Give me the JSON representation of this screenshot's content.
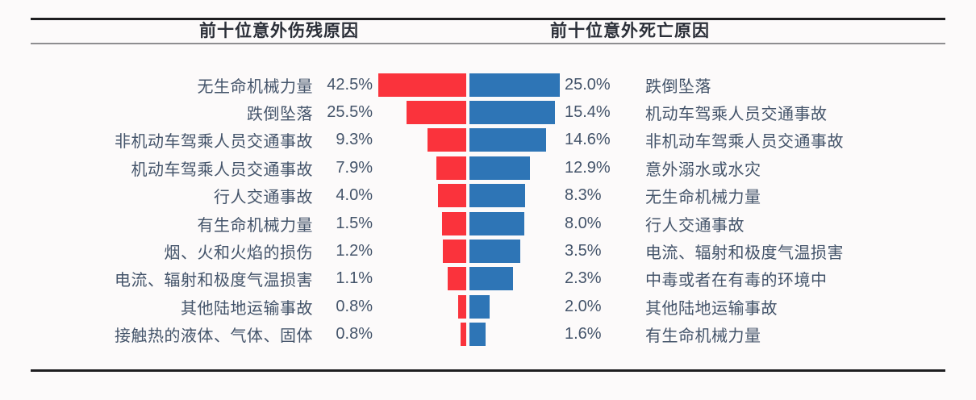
{
  "header": {
    "left_title": "前十位意外伤残原因",
    "right_title": "前十位意外死亡原因"
  },
  "colors": {
    "disability_bar": "#fa333c",
    "death_bar": "#2e75b6",
    "body_text": "#44546a",
    "title_text": "#2b2f38",
    "rule_dark": "#1e1e20",
    "rule_light": "#8e8e90",
    "background": "#fcfafa"
  },
  "chart_data": {
    "type": "bar",
    "variant": "tornado-bidirectional",
    "unit": "percent",
    "grid": false,
    "legend": "none",
    "left_series": {
      "name": "前十位意外伤残原因",
      "direction": "right-to-left",
      "color": "#fa333c",
      "items": [
        {
          "label": "无生命机械力量",
          "value": 42.5,
          "display": "42.5%",
          "bar_pct": 94
        },
        {
          "label": "跌倒坠落",
          "value": 25.5,
          "display": "25.5%",
          "bar_pct": 64
        },
        {
          "label": "非机动车驾乘人员交通事故",
          "value": 9.3,
          "display": "9.3%",
          "bar_pct": 41
        },
        {
          "label": "机动车驾乘人员交通事故",
          "value": 7.9,
          "display": "7.9%",
          "bar_pct": 32
        },
        {
          "label": "行人交通事故",
          "value": 4.0,
          "display": "4.0%",
          "bar_pct": 30
        },
        {
          "label": "有生命机械力量",
          "value": 1.5,
          "display": "1.5%",
          "bar_pct": 26
        },
        {
          "label": "烟、火和火焰的损伤",
          "value": 1.2,
          "display": "1.2%",
          "bar_pct": 25
        },
        {
          "label": "电流、辐射和极度气温损害",
          "value": 1.1,
          "display": "1.1%",
          "bar_pct": 20
        },
        {
          "label": "其他陆地运输事故",
          "value": 0.8,
          "display": "0.8%",
          "bar_pct": 9
        },
        {
          "label": "接触热的液体、气体、固体",
          "value": 0.8,
          "display": "0.8%",
          "bar_pct": 6
        }
      ]
    },
    "right_series": {
      "name": "前十位意外死亡原因",
      "direction": "left-to-right",
      "color": "#2e75b6",
      "items": [
        {
          "label": "跌倒坠落",
          "value": 25.0,
          "display": "25.0%",
          "bar_pct": 100
        },
        {
          "label": "机动车驾乘人员交通事故",
          "value": 15.4,
          "display": "15.4%",
          "bar_pct": 95
        },
        {
          "label": "非机动车驾乘人员交通事故",
          "value": 14.6,
          "display": "14.6%",
          "bar_pct": 85
        },
        {
          "label": "意外溺水或水灾",
          "value": 12.9,
          "display": "12.9%",
          "bar_pct": 67
        },
        {
          "label": "无生命机械力量",
          "value": 8.3,
          "display": "8.3%",
          "bar_pct": 62
        },
        {
          "label": "行人交通事故",
          "value": 8.0,
          "display": "8.0%",
          "bar_pct": 61
        },
        {
          "label": "电流、辐射和极度气温损害",
          "value": 3.5,
          "display": "3.5%",
          "bar_pct": 56
        },
        {
          "label": "中毒或者在有毒的环境中",
          "value": 2.3,
          "display": "2.3%",
          "bar_pct": 48
        },
        {
          "label": "其他陆地运输事故",
          "value": 2.0,
          "display": "2.0%",
          "bar_pct": 22
        },
        {
          "label": "有生命机械力量",
          "value": 1.6,
          "display": "1.6%",
          "bar_pct": 18
        }
      ]
    }
  }
}
